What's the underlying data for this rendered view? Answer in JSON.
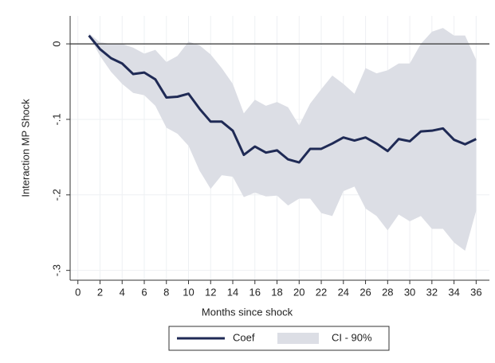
{
  "chart_data": {
    "type": "line",
    "x_label": "Months since shock",
    "y_label": "Interaction MP Shock",
    "x": [
      1,
      2,
      3,
      4,
      5,
      6,
      7,
      8,
      9,
      10,
      11,
      12,
      13,
      14,
      15,
      16,
      17,
      18,
      19,
      20,
      21,
      22,
      23,
      24,
      25,
      26,
      27,
      28,
      29,
      30,
      31,
      32,
      33,
      34,
      35,
      36
    ],
    "series": [
      {
        "name": "Coef",
        "color": "#1f2a55",
        "values": [
          0.011,
          -0.007,
          -0.019,
          -0.026,
          -0.04,
          -0.038,
          -0.047,
          -0.071,
          -0.07,
          -0.066,
          -0.086,
          -0.103,
          -0.103,
          -0.115,
          -0.147,
          -0.136,
          -0.144,
          -0.141,
          -0.153,
          -0.157,
          -0.139,
          -0.139,
          -0.132,
          -0.124,
          -0.128,
          -0.124,
          -0.132,
          -0.142,
          -0.126,
          -0.129,
          -0.116,
          -0.115,
          -0.112,
          -0.127,
          -0.133,
          -0.126
        ]
      },
      {
        "name": "CI - 90%",
        "type": "area",
        "color": "#dcdee5",
        "upper": [
          0.014,
          0.002,
          0,
          0,
          -0.005,
          -0.013,
          -0.008,
          -0.024,
          -0.016,
          0.003,
          -0.002,
          -0.014,
          -0.032,
          -0.053,
          -0.092,
          -0.074,
          -0.082,
          -0.077,
          -0.084,
          -0.108,
          -0.079,
          -0.06,
          -0.042,
          -0.053,
          -0.066,
          -0.032,
          -0.039,
          -0.035,
          -0.026,
          -0.026,
          0,
          0.016,
          0.021,
          0.011,
          0.011,
          -0.021
        ],
        "lower": [
          0.011,
          -0.016,
          -0.037,
          -0.053,
          -0.065,
          -0.068,
          -0.082,
          -0.111,
          -0.119,
          -0.135,
          -0.168,
          -0.192,
          -0.174,
          -0.176,
          -0.203,
          -0.197,
          -0.202,
          -0.201,
          -0.214,
          -0.205,
          -0.205,
          -0.224,
          -0.228,
          -0.195,
          -0.189,
          -0.218,
          -0.228,
          -0.247,
          -0.226,
          -0.235,
          -0.228,
          -0.245,
          -0.245,
          -0.263,
          -0.274,
          -0.221
        ]
      }
    ],
    "reference_line": 0,
    "xlim": [
      -0.7,
      37.2
    ],
    "ylim": [
      -0.313,
      0.037
    ],
    "xticks": [
      0,
      2,
      4,
      6,
      8,
      10,
      12,
      14,
      16,
      18,
      20,
      22,
      24,
      26,
      28,
      30,
      32,
      34,
      36
    ],
    "yticks": [
      0,
      {
        "value": -0.1,
        "label": "-.1"
      },
      {
        "value": -0.2,
        "label": "-.2"
      },
      {
        "value": -0.3,
        "label": "-.3"
      }
    ],
    "grid": true,
    "legend": "bottom"
  }
}
